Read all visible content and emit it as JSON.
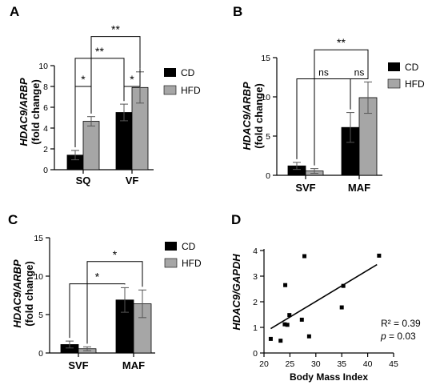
{
  "colors": {
    "cd": "#000000",
    "hfd": "#a6a6a6",
    "axis": "#000000"
  },
  "chart_data": [
    {
      "id": "A",
      "type": "bar",
      "panel_label": "A",
      "ylabel_italic": "HDAC9/ARBP",
      "ylabel_unit": "(fold change)",
      "ylim": [
        0,
        10
      ],
      "yticks": [
        0,
        2,
        4,
        6,
        8,
        10
      ],
      "categories": [
        "SQ",
        "VF"
      ],
      "series": [
        {
          "name": "CD",
          "values": [
            1.4,
            5.5
          ],
          "errors": [
            0.45,
            0.8
          ]
        },
        {
          "name": "HFD",
          "values": [
            4.65,
            7.9
          ],
          "errors": [
            0.45,
            1.5
          ]
        }
      ],
      "legend_position": "right",
      "significance": [
        {
          "label": "*",
          "from": [
            0,
            0
          ],
          "to": [
            0,
            1
          ],
          "level": 8.0
        },
        {
          "label": "*",
          "from": [
            1,
            0
          ],
          "to": [
            1,
            1
          ],
          "level": 8.0
        },
        {
          "label": "**",
          "from": [
            0,
            0
          ],
          "to": [
            1,
            0
          ],
          "level": 10.7
        },
        {
          "label": "**",
          "from": [
            0,
            1
          ],
          "to": [
            1,
            1
          ],
          "level": 12.8
        }
      ]
    },
    {
      "id": "B",
      "type": "bar",
      "panel_label": "B",
      "ylabel_italic": "HDAC9/ARBP",
      "ylabel_unit": "(fold change)",
      "ylim": [
        0,
        15
      ],
      "yticks": [
        0,
        5,
        10,
        15
      ],
      "categories": [
        "SVF",
        "MAF"
      ],
      "series": [
        {
          "name": "CD",
          "values": [
            1.2,
            6.1
          ],
          "errors": [
            0.45,
            1.9
          ]
        },
        {
          "name": "HFD",
          "values": [
            0.55,
            9.9
          ],
          "errors": [
            0.3,
            2.0
          ]
        }
      ],
      "legend_position": "right",
      "significance": [
        {
          "label": "ns",
          "from": [
            0,
            0
          ],
          "to": [
            1,
            0
          ],
          "level": 12.3
        },
        {
          "label": "ns",
          "from": [
            1,
            0
          ],
          "to": [
            1,
            1
          ],
          "level": 12.3
        },
        {
          "label": "**",
          "from": [
            0,
            1
          ],
          "to": [
            1,
            1
          ],
          "level": 16.0
        }
      ]
    },
    {
      "id": "C",
      "type": "bar",
      "panel_label": "C",
      "ylabel_italic": "HDAC9/ARBP",
      "ylabel_unit": "(fold change)",
      "ylim": [
        0,
        15
      ],
      "yticks": [
        0,
        5,
        10,
        15
      ],
      "categories": [
        "SVF",
        "MAF"
      ],
      "series": [
        {
          "name": "CD",
          "values": [
            1.1,
            6.9
          ],
          "errors": [
            0.45,
            1.6
          ]
        },
        {
          "name": "HFD",
          "values": [
            0.55,
            6.4
          ],
          "errors": [
            0.25,
            1.8
          ]
        }
      ],
      "legend_position": "right",
      "significance": [
        {
          "label": "*",
          "from": [
            0,
            0
          ],
          "to": [
            1,
            0
          ],
          "level": 9.0
        },
        {
          "label": "*",
          "from": [
            0,
            1
          ],
          "to": [
            1,
            1
          ],
          "level": 11.9
        }
      ]
    },
    {
      "id": "D",
      "type": "scatter",
      "panel_label": "D",
      "ylabel": "HDAC9/GAPDH",
      "xlabel": "Body Mass Index",
      "xlim": [
        20,
        45
      ],
      "ylim": [
        0,
        4
      ],
      "xticks": [
        20,
        25,
        30,
        35,
        40,
        45
      ],
      "yticks": [
        0,
        1,
        2,
        3,
        4
      ],
      "points": [
        [
          21.3,
          0.55
        ],
        [
          23.2,
          0.48
        ],
        [
          24.0,
          1.12
        ],
        [
          24.1,
          2.65
        ],
        [
          24.5,
          1.1
        ],
        [
          24.9,
          1.48
        ],
        [
          27.3,
          1.3
        ],
        [
          27.8,
          3.78
        ],
        [
          28.7,
          0.65
        ],
        [
          35.0,
          1.78
        ],
        [
          35.3,
          2.62
        ],
        [
          42.2,
          3.8
        ]
      ],
      "fit": {
        "x": [
          21.3,
          41.8
        ],
        "y": [
          0.95,
          3.45
        ]
      },
      "r2_text": "R² = 0.39",
      "p_label": "p",
      "p_value": " = 0.03"
    }
  ]
}
